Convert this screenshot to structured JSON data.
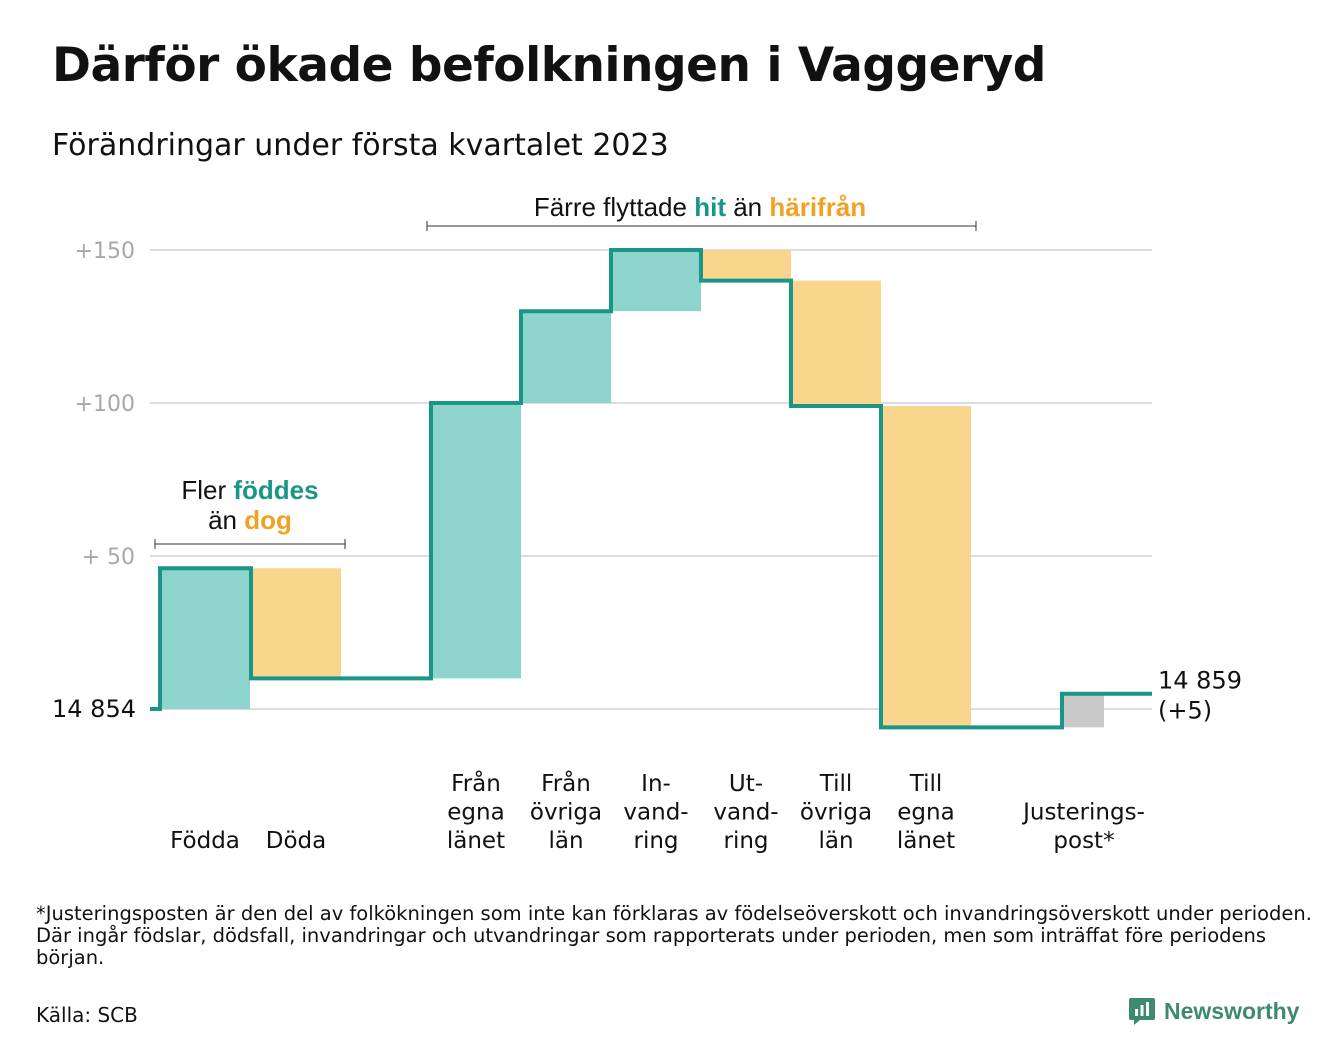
{
  "title": "Därför ökade befolkningen i Vaggeryd",
  "subtitle": "Förändringar under första kvartalet 2023",
  "chart_data": {
    "type": "waterfall",
    "start_value": 14854,
    "start_label": "14 854",
    "end_label_value": "14 859",
    "end_label_change": "(+5)",
    "y_ticks": [
      {
        "value": 50,
        "label": "+ 50"
      },
      {
        "value": 100,
        "label": "+100"
      },
      {
        "value": 150,
        "label": "+150"
      }
    ],
    "ylim": [
      -6,
      150
    ],
    "steps": [
      {
        "label_lines": [
          "Födda"
        ],
        "delta": 46,
        "kind": "in"
      },
      {
        "label_lines": [
          "Döda"
        ],
        "delta": -36,
        "kind": "out"
      },
      {
        "label_lines": [
          "Från",
          "egna",
          "länet"
        ],
        "delta": 90,
        "kind": "in"
      },
      {
        "label_lines": [
          "Från",
          "övriga",
          "län"
        ],
        "delta": 30,
        "kind": "in"
      },
      {
        "label_lines": [
          "In-",
          "vand-",
          "ring"
        ],
        "delta": 20,
        "kind": "in"
      },
      {
        "label_lines": [
          "Ut-",
          "vand-",
          "ring"
        ],
        "delta": -10,
        "kind": "out"
      },
      {
        "label_lines": [
          "Till",
          "övriga",
          "län"
        ],
        "delta": -41,
        "kind": "out"
      },
      {
        "label_lines": [
          "Till",
          "egna",
          "länet"
        ],
        "delta": -105,
        "kind": "out"
      },
      {
        "label_lines": [
          "Justerings-",
          "post*"
        ],
        "delta": 11,
        "kind": "adjust"
      }
    ],
    "annotations": {
      "births": {
        "line1_pre": "Fler ",
        "line1_hl": "föddes",
        "line2_pre": "än ",
        "line2_hl": "dog"
      },
      "moves": {
        "pre": "Färre flyttade ",
        "hl1": "hit",
        "mid": " än ",
        "hl2": "härifrån"
      }
    }
  },
  "colors": {
    "in_fill": "#8dd5cc",
    "out_fill": "#fad58e",
    "adjust_fill": "#c9c9c9",
    "line": "#1a9688",
    "teal_text": "#1a9688",
    "orange_text": "#f2a222",
    "grid": "#dddddd",
    "tick_text": "#a8a8a8"
  },
  "footnote": "*Justeringsposten är den del av folkökningen som inte kan förklaras av födelseöverskott och invandringsöverskott under perioden. Där ingår födslar, dödsfall, invandringar och utvandringar som rapporterats under perioden, men som inträffat före periodens början.",
  "source": "Källa: SCB",
  "brand": {
    "name": "Newsworthy",
    "icon": "newsworthy-logo-icon"
  }
}
